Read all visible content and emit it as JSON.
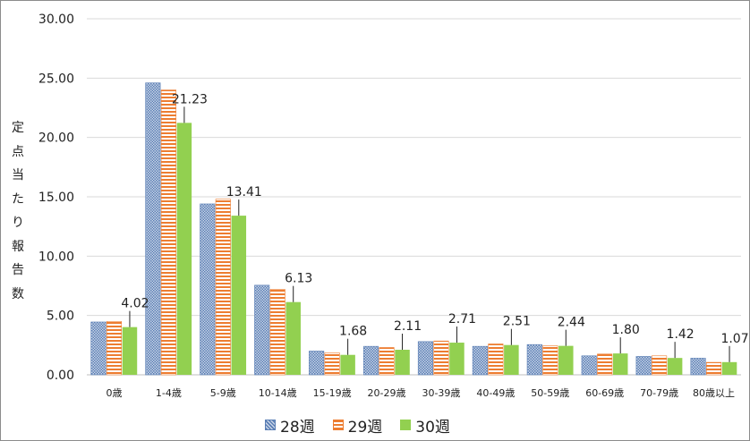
{
  "chart_data": {
    "type": "bar",
    "title": "",
    "ylabel": "定点当たり報告数",
    "xlabel": "",
    "ylim": [
      0,
      30
    ],
    "yticks": [
      "0.00",
      "5.00",
      "10.00",
      "15.00",
      "20.00",
      "25.00",
      "30.00"
    ],
    "categories": [
      "0歳",
      "1-4歳",
      "5-9歳",
      "10-14歳",
      "15-19歳",
      "20-29歳",
      "30-39歳",
      "40-49歳",
      "50-59歳",
      "60-69歳",
      "70-79歳",
      "80歳以上"
    ],
    "series": [
      {
        "name": "28週",
        "values": [
          4.45,
          24.6,
          14.4,
          7.55,
          2.0,
          2.4,
          2.8,
          2.4,
          2.55,
          1.6,
          1.55,
          1.4
        ]
      },
      {
        "name": "29週",
        "values": [
          4.5,
          24.0,
          14.8,
          7.2,
          1.85,
          2.3,
          2.85,
          2.6,
          2.45,
          1.75,
          1.6,
          1.05
        ]
      },
      {
        "name": "30週",
        "values": [
          4.02,
          21.23,
          13.41,
          6.13,
          1.68,
          2.11,
          2.71,
          2.51,
          2.44,
          1.8,
          1.42,
          1.07
        ]
      }
    ],
    "data_labels": [
      "4.02",
      "21.23",
      "13.41",
      "6.13",
      "1.68",
      "2.11",
      "2.71",
      "2.51",
      "2.44",
      "1.80",
      "1.42",
      "1.07"
    ],
    "grid": true,
    "legend_position": "bottom",
    "colors": {
      "series1": "#5b7fb5",
      "series2": "#ed7d31",
      "series3": "#92d050",
      "grid": "#d9d9d9"
    }
  }
}
